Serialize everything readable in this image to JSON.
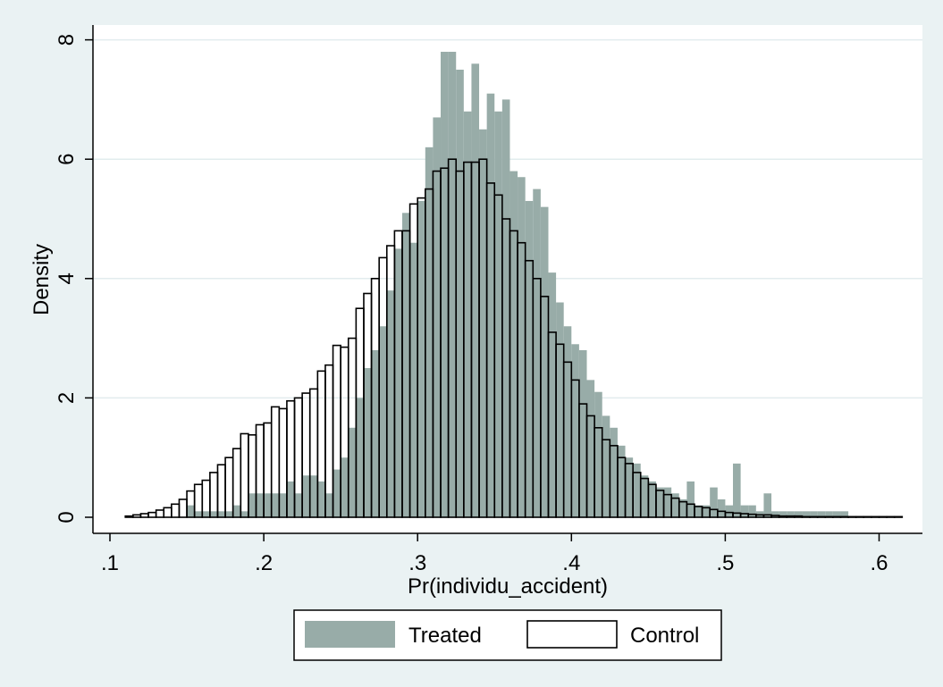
{
  "chart_data": {
    "type": "bar",
    "subtype": "overlaid-histogram",
    "xlabel": "Pr(individu_accident)",
    "ylabel": "Density",
    "xlim": [
      0.1,
      0.62
    ],
    "ylim": [
      0,
      8
    ],
    "xticks": [
      0.1,
      0.2,
      0.3,
      0.4,
      0.5,
      0.6
    ],
    "xtick_labels": [
      ".1",
      ".2",
      ".3",
      ".4",
      ".5",
      ".6"
    ],
    "yticks": [
      0,
      2,
      4,
      6,
      8
    ],
    "ytick_labels": [
      "0",
      "2",
      "4",
      "6",
      "8"
    ],
    "grid": true,
    "legend_position": "bottom",
    "colors": {
      "background": "#eaf2f3",
      "plot_background": "#ffffff",
      "treated": "#98aca8",
      "control_fill": "#ffffff",
      "control_edge": "#000000",
      "grid": "#e2ecee"
    },
    "bin_width": 0.005,
    "x_bin_starts": [
      0.11,
      0.115,
      0.12,
      0.125,
      0.13,
      0.135,
      0.14,
      0.145,
      0.15,
      0.155,
      0.16,
      0.165,
      0.17,
      0.175,
      0.18,
      0.185,
      0.19,
      0.195,
      0.2,
      0.205,
      0.21,
      0.215,
      0.22,
      0.225,
      0.23,
      0.235,
      0.24,
      0.245,
      0.25,
      0.255,
      0.26,
      0.265,
      0.27,
      0.275,
      0.28,
      0.285,
      0.29,
      0.295,
      0.3,
      0.305,
      0.31,
      0.315,
      0.32,
      0.325,
      0.33,
      0.335,
      0.34,
      0.345,
      0.35,
      0.355,
      0.36,
      0.365,
      0.37,
      0.375,
      0.38,
      0.385,
      0.39,
      0.395,
      0.4,
      0.405,
      0.41,
      0.415,
      0.42,
      0.425,
      0.43,
      0.435,
      0.44,
      0.445,
      0.45,
      0.455,
      0.46,
      0.465,
      0.47,
      0.475,
      0.48,
      0.485,
      0.49,
      0.495,
      0.5,
      0.505,
      0.51,
      0.515,
      0.52,
      0.525,
      0.53,
      0.535,
      0.54,
      0.545,
      0.55,
      0.555,
      0.56,
      0.565,
      0.57,
      0.575,
      0.58,
      0.585,
      0.59,
      0.595,
      0.6,
      0.605,
      0.61
    ],
    "series": [
      {
        "name": "Treated",
        "values": [
          0,
          0,
          0,
          0,
          0,
          0,
          0,
          0,
          0.2,
          0.1,
          0.1,
          0.1,
          0.1,
          0.1,
          0.2,
          0.1,
          0.4,
          0.4,
          0.4,
          0.4,
          0.4,
          0.6,
          0.4,
          0.7,
          0.7,
          0.6,
          0.4,
          0.8,
          1.0,
          1.5,
          2.0,
          2.5,
          2.8,
          3.2,
          3.8,
          4.5,
          5.1,
          4.6,
          5.3,
          6.2,
          6.7,
          7.8,
          7.8,
          7.5,
          6.8,
          7.6,
          6.5,
          7.1,
          6.8,
          7.0,
          5.8,
          5.7,
          5.3,
          5.5,
          5.2,
          4.1,
          3.6,
          3.2,
          2.9,
          2.8,
          2.3,
          2.1,
          1.7,
          1.5,
          1.2,
          1.0,
          0.9,
          0.7,
          0.6,
          0.5,
          0.5,
          0.4,
          0.3,
          0.6,
          0.2,
          0.2,
          0.5,
          0.3,
          0.2,
          0.9,
          0.2,
          0.2,
          0.1,
          0.4,
          0.1,
          0.1,
          0.1,
          0.1,
          0.1,
          0.1,
          0.1,
          0.1,
          0.1,
          0.1,
          0,
          0,
          0,
          0,
          0,
          0,
          0
        ]
      },
      {
        "name": "Control",
        "values": [
          0.02,
          0.04,
          0.06,
          0.08,
          0.12,
          0.16,
          0.22,
          0.3,
          0.44,
          0.55,
          0.62,
          0.75,
          0.88,
          1.0,
          1.15,
          1.4,
          1.38,
          1.55,
          1.58,
          1.85,
          1.82,
          1.95,
          2.0,
          2.08,
          2.15,
          2.45,
          2.55,
          2.88,
          2.85,
          3.0,
          3.5,
          3.75,
          4.0,
          4.35,
          4.55,
          4.8,
          4.8,
          5.25,
          5.35,
          5.5,
          5.8,
          5.85,
          6.0,
          5.8,
          5.95,
          5.95,
          6.0,
          5.6,
          5.4,
          5.0,
          4.8,
          4.6,
          4.3,
          4.0,
          3.7,
          3.1,
          2.9,
          2.6,
          2.3,
          1.9,
          1.7,
          1.5,
          1.3,
          1.2,
          1.0,
          0.9,
          0.75,
          0.65,
          0.55,
          0.45,
          0.38,
          0.32,
          0.26,
          0.22,
          0.18,
          0.16,
          0.13,
          0.1,
          0.08,
          0.07,
          0.06,
          0.05,
          0.04,
          0.04,
          0.03,
          0.02,
          0.02,
          0.02,
          0.01,
          0.01,
          0.01,
          0.01,
          0.01,
          0.01,
          0.01,
          0.01,
          0.01,
          0.01,
          0.01,
          0.01,
          0.01
        ]
      }
    ]
  }
}
